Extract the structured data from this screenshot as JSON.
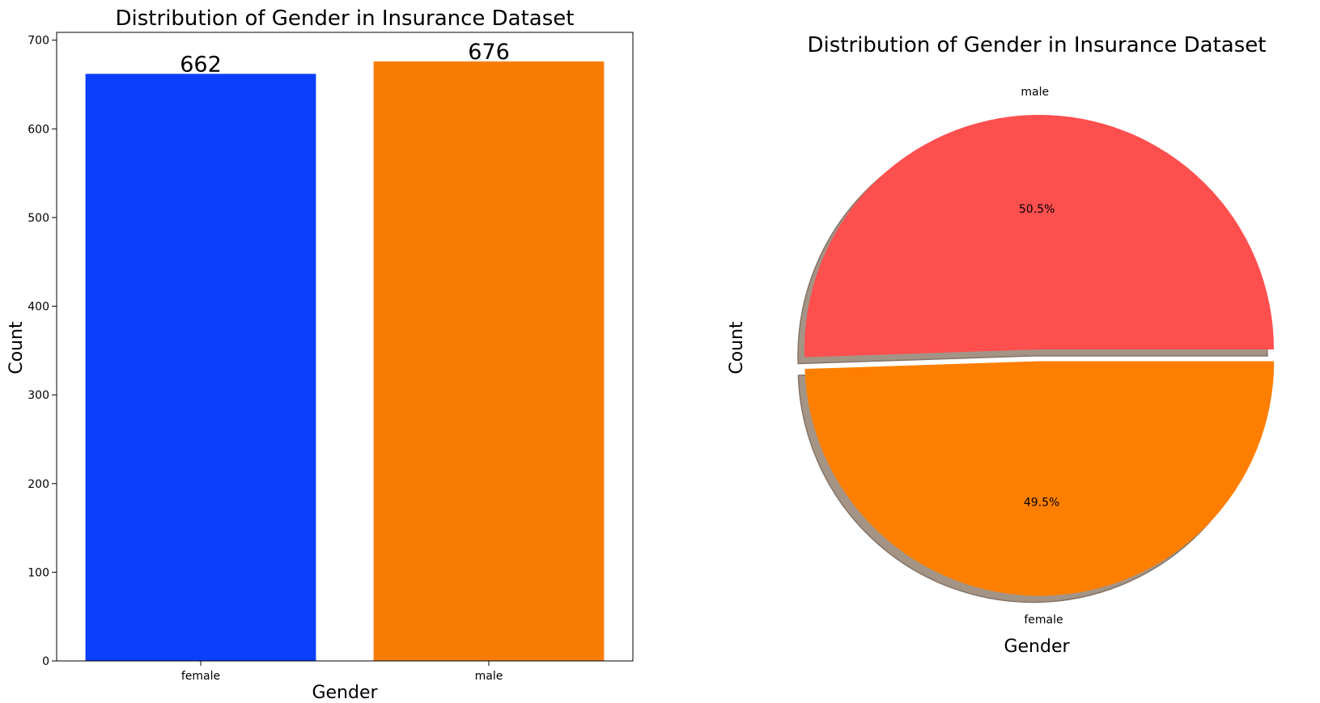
{
  "chart_data": [
    {
      "type": "bar",
      "title": "Distribution of Gender in Insurance Dataset",
      "xlabel": "Gender",
      "ylabel": "Count",
      "categories": [
        "female",
        "male"
      ],
      "values": [
        662,
        676
      ],
      "data_labels": [
        "662",
        "676"
      ],
      "ylim": [
        0,
        700
      ],
      "yticks": [
        0,
        100,
        200,
        300,
        400,
        500,
        600,
        700
      ],
      "colors": [
        "#0a3ffc",
        "#f87d07"
      ],
      "grid": false
    },
    {
      "type": "pie",
      "title": "Distribution of Gender in Insurance Dataset",
      "xlabel": "Gender",
      "ylabel": "Count",
      "labels": [
        "male",
        "female"
      ],
      "values": [
        676,
        662
      ],
      "percent_labels": [
        "50.5%",
        "49.5%"
      ],
      "colors": [
        "#fe4f4f",
        "#fe7f00"
      ],
      "explode": [
        0,
        0.05
      ],
      "shadow": true
    }
  ]
}
